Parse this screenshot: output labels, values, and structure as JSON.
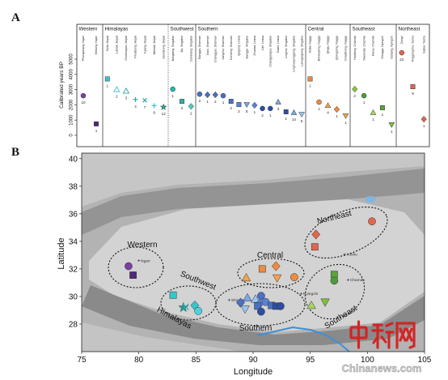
{
  "panels": {
    "a": "A",
    "b": "B"
  },
  "watermark": {
    "logo_text": "中新网",
    "site": "Chinanews.com"
  },
  "chart_data": [
    {
      "type": "scatter",
      "panel": "A",
      "title": "",
      "xlabel": "",
      "ylabel": "Calibrated years BP",
      "yticks": [
        0,
        1000,
        2000,
        3000,
        4000,
        5000
      ],
      "ylim": [
        0,
        5000
      ],
      "groups": [
        {
          "region": "Western",
          "sites": [
            {
              "name": "Phuriganang, Ngari",
              "age": 2600,
              "n": "10",
              "shape": "circle",
              "color": "#7b3fa0"
            },
            {
              "name": "Gebong, Ngari",
              "age": 750,
              "n": "1",
              "shape": "square",
              "color": "#4f2a7a"
            }
          ]
        },
        {
          "region": "Himalayas",
          "sites": [
            {
              "name": "Suila, Nepal",
              "age": 3700,
              "n": "1",
              "shape": "square",
              "color": "#36c6cc"
            },
            {
              "name": "Lubrak, Nepal",
              "age": 3000,
              "n": "2",
              "shape": "triangle-open",
              "color": "#36c6cc"
            },
            {
              "name": "Chokhopani, Nepal",
              "age": 2900,
              "n": "3",
              "shape": "triangle-open",
              "color": "#2aa6a8"
            },
            {
              "name": "Phudzeng, Nepal",
              "age": 2350,
              "n": "4",
              "shape": "cross",
              "color": "#2aa6a8"
            },
            {
              "name": "Kyang, Nepal",
              "age": 2300,
              "n": "7",
              "shape": "x",
              "color": "#2aa6a8"
            },
            {
              "name": "Mebrak, Nepal",
              "age": 1950,
              "n": "9",
              "shape": "cross",
              "color": "#36c6cc"
            },
            {
              "name": "Samdzong, Nepal",
              "age": 1850,
              "n": "12",
              "shape": "star",
              "color": "#1f9c93"
            }
          ]
        },
        {
          "region": "Southwest",
          "sites": [
            {
              "name": "Bangtang, Shigatse",
              "age": 3030,
              "n": "1",
              "shape": "circle",
              "color": "#2bb5a6"
            },
            {
              "name": "Ba, Shigatse",
              "age": 2230,
              "n": "2",
              "shape": "square",
              "color": "#2bb5a6"
            },
            {
              "name": "Dunbrang, Shigatse",
              "age": 1900,
              "n": "2",
              "shape": "diamond",
              "color": "#4ad0c0"
            }
          ]
        },
        {
          "region": "Southern",
          "sites": [
            {
              "name": "Bangga, Shannan",
              "age": 2700,
              "n": "2",
              "shape": "circle",
              "color": "#4a6fc4"
            },
            {
              "name": "Xiaxi, Shannan",
              "age": 2660,
              "n": "1",
              "shape": "diamond",
              "color": "#4a6fc4"
            },
            {
              "name": "Changguo, Shannan",
              "age": 2660,
              "n": "2",
              "shape": "diamond",
              "color": "#4a6fc4"
            },
            {
              "name": "Jiangmu, Shannan",
              "age": 2600,
              "n": "1",
              "shape": "circle",
              "color": "#4a6fc4"
            },
            {
              "name": "Kemeng, Shannan",
              "age": 2230,
              "n": "2",
              "shape": "square",
              "color": "#4a6fc4"
            },
            {
              "name": "Qugong, Lhasa",
              "age": 2020,
              "n": "2",
              "shape": "square",
              "color": "#5b82d6"
            },
            {
              "name": "Bangge, Shigatse",
              "age": 2020,
              "n": "5",
              "shape": "triangle-down",
              "color": "#7aa8e6"
            },
            {
              "name": "Zhuowa, Lhasa",
              "age": 1970,
              "n": "1",
              "shape": "diamond",
              "color": "#5b82d6"
            },
            {
              "name": "Lilin, Lhasa",
              "age": 1760,
              "n": "2",
              "shape": "circle",
              "color": "#2d4ea0"
            },
            {
              "name": "Changguogou, Shigatse",
              "age": 1760,
              "n": "1",
              "shape": "circle",
              "color": "#2d4ea0"
            },
            {
              "name": "Dashi, Lhasa",
              "age": 2180,
              "n": "3",
              "shape": "triangle-up",
              "color": "#7aa8e6"
            },
            {
              "name": "Lingma, Shigatse",
              "age": 1540,
              "n": "1",
              "shape": "square",
              "color": "#2d4ea0"
            },
            {
              "name": "Lingmaojonggong, Shigatse",
              "age": 1490,
              "n": "14",
              "shape": "triangle-up",
              "color": "#7aa8e6"
            },
            {
              "name": "Lanuqiuqiang, Shigatse",
              "age": 1380,
              "n": "5",
              "shape": "triangle-down",
              "color": "#9cc3f0"
            }
          ]
        },
        {
          "region": "Central",
          "sites": [
            {
              "name": "Outai, Nagqu",
              "age": 3700,
              "n": "1",
              "shape": "square",
              "color": "#f08a3c"
            },
            {
              "name": "Bihuliuzong, Nagqu",
              "age": 2180,
              "n": "1",
              "shape": "circle",
              "color": "#f08a3c"
            },
            {
              "name": "Qiuqu, Nagqu",
              "age": 1950,
              "n": "4",
              "shape": "triangle-up",
              "color": "#f5a24b"
            },
            {
              "name": "Qiongzong, Nagqu",
              "age": 1700,
              "n": "1",
              "shape": "diamond",
              "color": "#f08a3c"
            },
            {
              "name": "Chadzhong, Nagqu",
              "age": 1280,
              "n": "1",
              "shape": "triangle-down",
              "color": "#f5a24b"
            }
          ]
        },
        {
          "region": "Southeast",
          "sites": [
            {
              "name": "Haidiong, Chamdo",
              "age": 3030,
              "n": "2",
              "shape": "diamond",
              "color": "#8dc63f"
            },
            {
              "name": "Xiaoenda, Chamdo",
              "age": 2600,
              "n": "1",
              "shape": "circle",
              "color": "#4f9a3d"
            },
            {
              "name": "Karuo, Chamdo",
              "age": 1490,
              "n": "1",
              "shape": "triangle-up",
              "color": "#a6d65a"
            },
            {
              "name": "Gongga, Nyingchi",
              "age": 1810,
              "n": "1",
              "shape": "square",
              "color": "#5aa43c"
            },
            {
              "name": "Gebang, Nyingchi",
              "age": 700,
              "n": "1",
              "shape": "triangle-down",
              "color": "#7cbf3f"
            }
          ]
        },
        {
          "region": "Northeast",
          "sites": [
            {
              "name": "Zongri",
              "age": 5420,
              "n": "22",
              "shape": "circle",
              "color": "#e0664c"
            },
            {
              "name": "Yinggongshu, Yushu",
              "age": 3190,
              "n": "9",
              "shape": "square",
              "color": "#e0664c"
            },
            {
              "name": "Gatuo, Yushu",
              "age": 1060,
              "n": "1",
              "shape": "diamond",
              "color": "#e0664c"
            }
          ]
        }
      ]
    },
    {
      "type": "scatter",
      "panel": "B",
      "title": "",
      "xlabel": "Longitude",
      "ylabel": "Latitude",
      "xlim": [
        75,
        105
      ],
      "ylim": [
        26,
        40.4
      ],
      "xticks": [
        75,
        80,
        85,
        90,
        95,
        100,
        105
      ],
      "yticks": [
        28,
        30,
        32,
        34,
        36,
        38,
        40
      ],
      "regions": [
        "Western",
        "Southwest",
        "Himalayas",
        "Central",
        "Southern",
        "Southeast",
        "Northeast"
      ],
      "points": [
        {
          "region": "Western",
          "lon": 79.1,
          "lat": 32.2,
          "shape": "circle",
          "color": "#7b3fa0"
        },
        {
          "region": "Western",
          "lon": 79.5,
          "lat": 31.55,
          "shape": "square",
          "color": "#4f2a7a"
        },
        {
          "region": "Himalayas",
          "lon": 83.0,
          "lat": 30.1,
          "shape": "square",
          "color": "#36c6cc"
        },
        {
          "region": "Himalayas",
          "lon": 83.9,
          "lat": 29.2,
          "shape": "star",
          "color": "#1f9c93"
        },
        {
          "region": "Himalayas",
          "lon": 84.1,
          "lat": 29.25,
          "shape": "x",
          "color": "#2aa6a8"
        },
        {
          "region": "Himalayas",
          "lon": 84.9,
          "lat": 29.35,
          "shape": "diamond",
          "color": "#36c6cc"
        },
        {
          "region": "Himalayas",
          "lon": 85.2,
          "lat": 28.95,
          "shape": "circle",
          "color": "#4fd2dd"
        },
        {
          "region": "Central",
          "lon": 90.8,
          "lat": 32.0,
          "shape": "square",
          "color": "#f08a3c"
        },
        {
          "region": "Central",
          "lon": 92.0,
          "lat": 32.2,
          "shape": "diamond",
          "color": "#f08a3c"
        },
        {
          "region": "Central",
          "lon": 89.4,
          "lat": 31.35,
          "shape": "triangle-up",
          "color": "#f5a24b"
        },
        {
          "region": "Central",
          "lon": 92.1,
          "lat": 31.35,
          "shape": "triangle-down",
          "color": "#f5a24b"
        },
        {
          "region": "Central",
          "lon": 93.6,
          "lat": 31.4,
          "shape": "circle",
          "color": "#f08a3c"
        },
        {
          "region": "Southern",
          "lon": 89.5,
          "lat": 29.9,
          "shape": "triangle-up",
          "color": "#7aa8e6"
        },
        {
          "region": "Southern",
          "lon": 90.2,
          "lat": 29.8,
          "shape": "triangle-up",
          "color": "#9cc3f0"
        },
        {
          "region": "Southern",
          "lon": 88.9,
          "lat": 29.55,
          "shape": "diamond",
          "color": "#4a6fc4"
        },
        {
          "region": "Southern",
          "lon": 90.7,
          "lat": 30.05,
          "shape": "circle",
          "color": "#4a6fc4"
        },
        {
          "region": "Southern",
          "lon": 90.6,
          "lat": 29.5,
          "shape": "diamond",
          "color": "#5b82d6"
        },
        {
          "region": "Southern",
          "lon": 91.1,
          "lat": 29.6,
          "shape": "circle",
          "color": "#5b82d6"
        },
        {
          "region": "Southern",
          "lon": 90.4,
          "lat": 29.3,
          "shape": "square",
          "color": "#4a6fc4"
        },
        {
          "region": "Southern",
          "lon": 91.6,
          "lat": 29.35,
          "shape": "square",
          "color": "#4a6fc4"
        },
        {
          "region": "Southern",
          "lon": 89.3,
          "lat": 29.1,
          "shape": "triangle-down",
          "color": "#9cc3f0"
        },
        {
          "region": "Southern",
          "lon": 90.7,
          "lat": 28.9,
          "shape": "circle",
          "color": "#2d4ea0"
        },
        {
          "region": "Southern",
          "lon": 92.0,
          "lat": 29.3,
          "shape": "square",
          "color": "#2d4ea0"
        },
        {
          "region": "Southern",
          "lon": 92.4,
          "lat": 29.3,
          "shape": "circle",
          "color": "#2d4ea0"
        },
        {
          "region": "Southeast",
          "lon": 97.1,
          "lat": 31.6,
          "shape": "square",
          "color": "#5aa43c"
        },
        {
          "region": "Southeast",
          "lon": 97.1,
          "lat": 31.15,
          "shape": "circle",
          "color": "#4f9a3d"
        },
        {
          "region": "Southeast",
          "lon": 96.3,
          "lat": 29.6,
          "shape": "triangle-down",
          "color": "#7cbf3f"
        },
        {
          "region": "Southeast",
          "lon": 95.1,
          "lat": 29.35,
          "shape": "triangle-up",
          "color": "#a6d65a"
        },
        {
          "region": "Northeast",
          "lon": 100.4,
          "lat": 35.45,
          "shape": "circle",
          "color": "#e0664c"
        },
        {
          "region": "Northeast",
          "lon": 95.5,
          "lat": 34.5,
          "shape": "diamond",
          "color": "#e0664c"
        },
        {
          "region": "Northeast",
          "lon": 95.4,
          "lat": 33.6,
          "shape": "square",
          "color": "#e0664c"
        }
      ],
      "places": [
        {
          "name": "Ngari",
          "lon": 80.0,
          "lat": 32.6
        },
        {
          "name": "Shigatse",
          "lon": 87.9,
          "lat": 29.75
        },
        {
          "name": "Nyingchi",
          "lon": 94.2,
          "lat": 30.2
        },
        {
          "name": "Chamdo",
          "lon": 98.3,
          "lat": 31.2
        },
        {
          "name": "Yushu",
          "lon": 98.0,
          "lat": 33.05
        }
      ]
    }
  ]
}
